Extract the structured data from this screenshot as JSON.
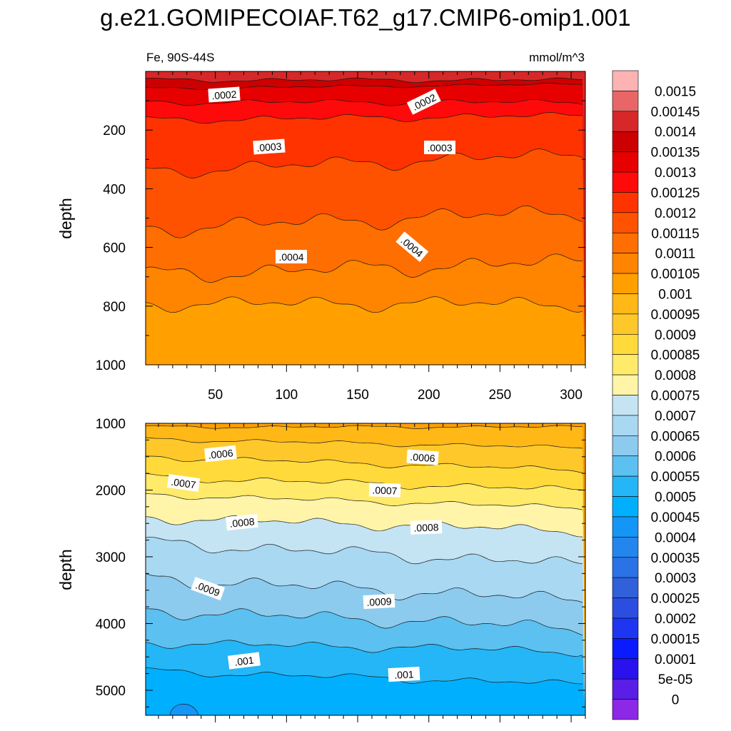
{
  "title": "g.e21.GOMIPECOIAF.T62_g17.CMIP6-omip1.001",
  "chart_data": [
    {
      "type": "heatmap",
      "panel": "upper",
      "left_label": "Fe, 90S-44S",
      "right_label": "mmol/m^3",
      "ylabel": "depth",
      "xlim": [
        1,
        310
      ],
      "ylim": [
        0,
        1000
      ],
      "y_inverted": true,
      "x_ticks": [
        "50",
        "100",
        "150",
        "200",
        "250",
        "300"
      ],
      "y_ticks": [
        "200",
        "400",
        "600",
        "800",
        "1000"
      ],
      "contour_labels": [
        ".0002",
        ".0002",
        ".0003",
        ".0003",
        ".0004",
        ".0004"
      ]
    },
    {
      "type": "heatmap",
      "panel": "lower",
      "ylabel": "depth",
      "xlim": [
        1,
        310
      ],
      "ylim": [
        1000,
        5375
      ],
      "y_inverted": true,
      "y_ticks": [
        "1000",
        "2000",
        "3000",
        "4000",
        "5000"
      ],
      "contour_labels": [
        ".0006",
        ".0006",
        ".0007",
        ".0007",
        ".0008",
        ".0008",
        ".0009",
        ".0009",
        ".001",
        ".001"
      ]
    }
  ],
  "colorbar": {
    "labels": [
      "0.0015",
      "0.00145",
      "0.0014",
      "0.00135",
      "0.0013",
      "0.00125",
      "0.0012",
      "0.00115",
      "0.0011",
      "0.00105",
      "0.001",
      "0.00095",
      "0.0009",
      "0.00085",
      "0.0008",
      "0.00075",
      "0.0007",
      "0.00065",
      "0.0006",
      "0.00055",
      "0.0005",
      "0.00045",
      "0.0004",
      "0.00035",
      "0.0003",
      "0.00025",
      "0.0002",
      "0.00015",
      "0.0001",
      "5e-05",
      "0"
    ],
    "colors": [
      "#FDB3B3",
      "#E96666",
      "#D62828",
      "#CC0000",
      "#E60000",
      "#FF0A0A",
      "#FF3300",
      "#FF5200",
      "#FF6E00",
      "#FF8400",
      "#FFA000",
      "#FFB815",
      "#FFC82A",
      "#FFDA3A",
      "#FFEA6A",
      "#FFF4A8",
      "#C4E4F4",
      "#A8D8F2",
      "#8CCBEE",
      "#5CC0F0",
      "#24B6F6",
      "#00B0FF",
      "#1496F6",
      "#2286EE",
      "#2A72E6",
      "#3060DA",
      "#2C4EE0",
      "#1E36F2",
      "#0A1CFF",
      "#2A12EE",
      "#5A1EE6",
      "#8C28E6"
    ]
  }
}
